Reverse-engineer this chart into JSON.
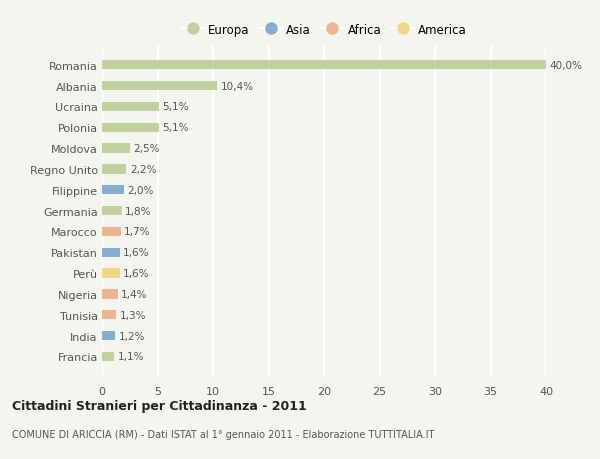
{
  "categories": [
    "Romania",
    "Albania",
    "Ucraina",
    "Polonia",
    "Moldova",
    "Regno Unito",
    "Filippine",
    "Germania",
    "Marocco",
    "Pakistan",
    "Perù",
    "Nigeria",
    "Tunisia",
    "India",
    "Francia"
  ],
  "values": [
    40.0,
    10.4,
    5.1,
    5.1,
    2.5,
    2.2,
    2.0,
    1.8,
    1.7,
    1.6,
    1.6,
    1.4,
    1.3,
    1.2,
    1.1
  ],
  "labels": [
    "40,0%",
    "10,4%",
    "5,1%",
    "5,1%",
    "2,5%",
    "2,2%",
    "2,0%",
    "1,8%",
    "1,7%",
    "1,6%",
    "1,6%",
    "1,4%",
    "1,3%",
    "1,2%",
    "1,1%"
  ],
  "continents": [
    "Europa",
    "Europa",
    "Europa",
    "Europa",
    "Europa",
    "Europa",
    "Asia",
    "Europa",
    "Africa",
    "Asia",
    "America",
    "Africa",
    "Africa",
    "Asia",
    "Europa"
  ],
  "colors": {
    "Europa": "#b5c98e",
    "Asia": "#6e9dc9",
    "Africa": "#e8a87c",
    "America": "#f0d070"
  },
  "title": "Cittadini Stranieri per Cittadinanza - 2011",
  "subtitle": "COMUNE DI ARICCIA (RM) - Dati ISTAT al 1° gennaio 2011 - Elaborazione TUTTITALIA.IT",
  "xlim": [
    0,
    40
  ],
  "xticks": [
    0,
    5,
    10,
    15,
    20,
    25,
    30,
    35,
    40
  ],
  "background_color": "#f5f5f0",
  "grid_color": "#ffffff",
  "bar_alpha": 0.82,
  "bar_height": 0.45,
  "legend_order": [
    "Europa",
    "Asia",
    "Africa",
    "America"
  ]
}
